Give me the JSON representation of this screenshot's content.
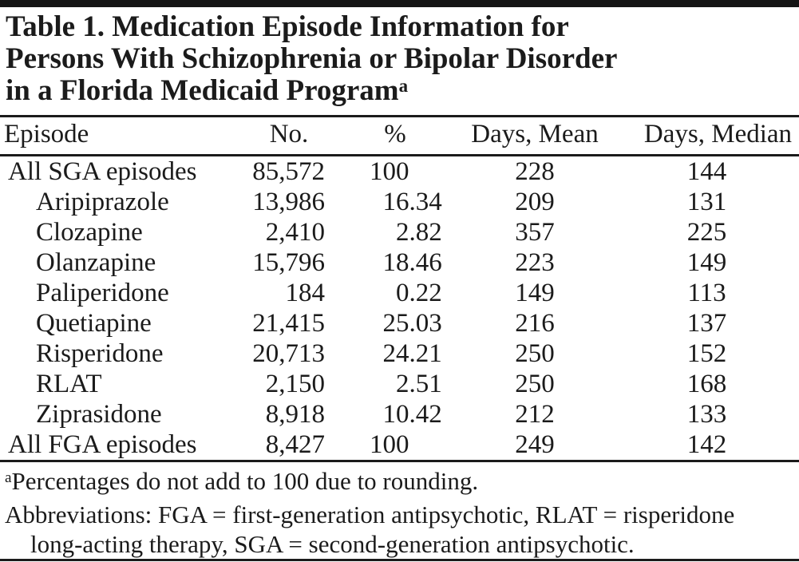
{
  "title": {
    "lines": [
      "Table 1. Medication Episode Information for",
      "Persons With Schizophrenia or Bipolar Disorder",
      "in a Florida Medicaid Program"
    ],
    "footnote_marker": "a"
  },
  "table": {
    "columns": [
      "Episode",
      "No.",
      "%",
      "Days, Mean",
      "Days, Median"
    ],
    "rows": [
      {
        "episode": "All SGA episodes",
        "indent": 0,
        "no": "85,572",
        "pct": "100",
        "days_mean": "228",
        "days_median": "144"
      },
      {
        "episode": "Aripiprazole",
        "indent": 1,
        "no": "13,986",
        "pct": "16.34",
        "days_mean": "209",
        "days_median": "131"
      },
      {
        "episode": "Clozapine",
        "indent": 1,
        "no": "2,410",
        "pct": "2.82",
        "days_mean": "357",
        "days_median": "225"
      },
      {
        "episode": "Olanzapine",
        "indent": 1,
        "no": "15,796",
        "pct": "18.46",
        "days_mean": "223",
        "days_median": "149"
      },
      {
        "episode": "Paliperidone",
        "indent": 1,
        "no": "184",
        "pct": "0.22",
        "days_mean": "149",
        "days_median": "113"
      },
      {
        "episode": "Quetiapine",
        "indent": 1,
        "no": "21,415",
        "pct": "25.03",
        "days_mean": "216",
        "days_median": "137"
      },
      {
        "episode": "Risperidone",
        "indent": 1,
        "no": "20,713",
        "pct": "24.21",
        "days_mean": "250",
        "days_median": "152"
      },
      {
        "episode": "RLAT",
        "indent": 1,
        "no": "2,150",
        "pct": "2.51",
        "days_mean": "250",
        "days_median": "168"
      },
      {
        "episode": "Ziprasidone",
        "indent": 1,
        "no": "8,918",
        "pct": "10.42",
        "days_mean": "212",
        "days_median": "133"
      },
      {
        "episode": "All FGA episodes",
        "indent": 0,
        "no": "8,427",
        "pct": "100",
        "days_mean": "249",
        "days_median": "142"
      }
    ]
  },
  "footnotes": {
    "marker": "a",
    "note_a": "Percentages do not add to 100 due to rounding.",
    "abbrev_lines": [
      "Abbreviations: FGA = first-generation antipsychotic, RLAT = risperidone",
      "long-acting therapy, SGA = second-generation antipsychotic."
    ]
  },
  "colors": {
    "ink": "#1b1b1b",
    "background": "#ffffff"
  }
}
